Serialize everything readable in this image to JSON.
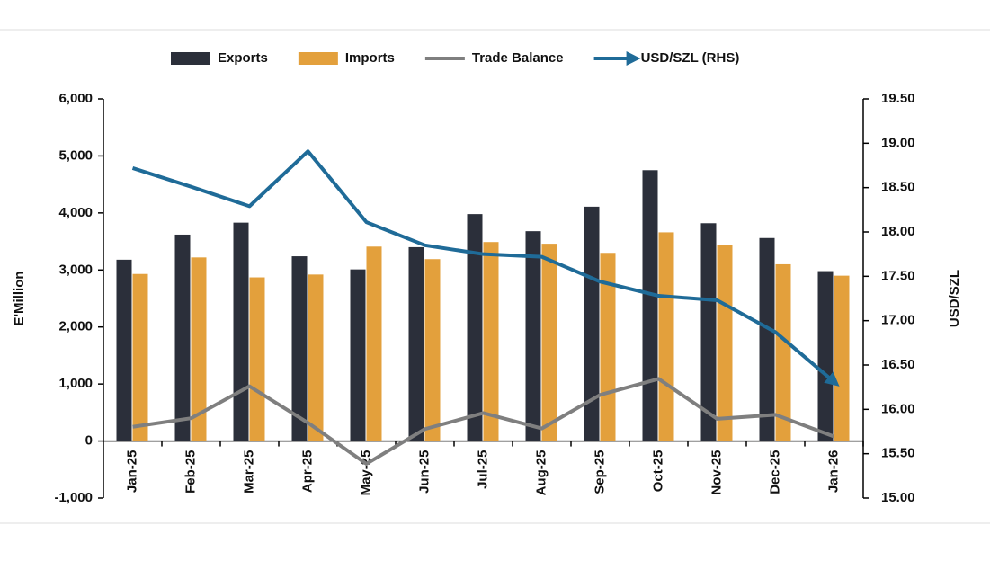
{
  "chart_data": {
    "type": "bar",
    "categories": [
      "Jan-25",
      "Feb-25",
      "Mar-25",
      "Apr-25",
      "May-25",
      "Jun-25",
      "Jul-25",
      "Aug-25",
      "Sep-25",
      "Oct-25",
      "Nov-25",
      "Dec-25",
      "Jan-26"
    ],
    "series": [
      {
        "name": "Exports",
        "type": "bar",
        "color": "#2b2f3a",
        "values": [
          3180,
          3620,
          3830,
          3240,
          3010,
          3400,
          3980,
          3680,
          4110,
          4750,
          3820,
          3560,
          2980
        ]
      },
      {
        "name": "Imports",
        "type": "bar",
        "color": "#e3a03c",
        "values": [
          2930,
          3220,
          2870,
          2920,
          3410,
          3190,
          3490,
          3460,
          3300,
          3660,
          3430,
          3100,
          2900
        ]
      },
      {
        "name": "Trade Balance",
        "type": "line",
        "color": "#7f7f7f",
        "values": [
          250,
          400,
          960,
          320,
          -400,
          210,
          490,
          220,
          810,
          1090,
          390,
          460,
          80
        ]
      },
      {
        "name": "USD/SZL (RHS)",
        "type": "line",
        "axis": "y2",
        "arrow": true,
        "color": "#1f6b98",
        "values": [
          18.72,
          18.51,
          18.29,
          18.91,
          18.11,
          17.85,
          17.75,
          17.72,
          17.44,
          17.28,
          17.23,
          16.87,
          16.31
        ]
      }
    ],
    "y_label": "E'Million",
    "y2_label": "USD/SZL",
    "ylim": [
      -1000,
      6000
    ],
    "yticks": [
      {
        "value": -1000,
        "label": "-1,000"
      },
      0,
      {
        "value": 1000,
        "label": "1,000"
      },
      {
        "value": 2000,
        "label": "2,000"
      },
      {
        "value": 3000,
        "label": "3,000"
      },
      {
        "value": 4000,
        "label": "4,000"
      },
      {
        "value": 5000,
        "label": "5,000"
      },
      {
        "value": 6000,
        "label": "6,000"
      }
    ],
    "y2lim": [
      15,
      19.5
    ],
    "y2ticks": [
      {
        "value": 15,
        "label": "15.00"
      },
      {
        "value": 15.5,
        "label": "15.50"
      },
      {
        "value": 16,
        "label": "16.00"
      },
      {
        "value": 16.5,
        "label": "16.50"
      },
      {
        "value": 17,
        "label": "17.00"
      },
      {
        "value": 17.5,
        "label": "17.50"
      },
      {
        "value": 18,
        "label": "18.00"
      },
      {
        "value": 18.5,
        "label": "18.50"
      },
      {
        "value": 19,
        "label": "19.00"
      },
      {
        "value": 19.5,
        "label": "19.50"
      }
    ],
    "legend": "top"
  }
}
